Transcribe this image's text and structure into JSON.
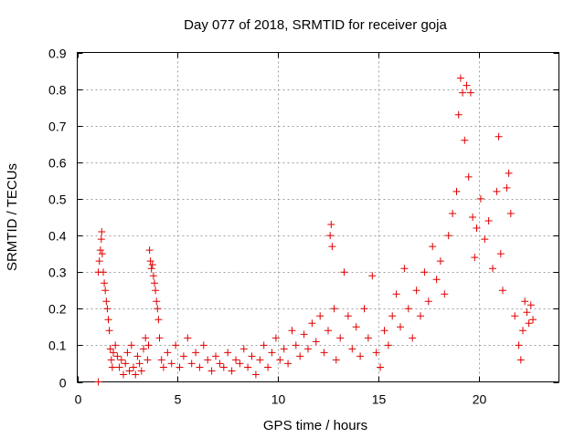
{
  "chart_data": {
    "type": "scatter",
    "title": "Day 077 of 2018, SRMTID for receiver goja",
    "xlabel": "GPS time / hours",
    "ylabel": "SRMTID / TECUs",
    "xlim": [
      0,
      24
    ],
    "ylim": [
      0,
      0.9
    ],
    "grid": true,
    "marker": "+",
    "color": "#e00000",
    "x_ticks": [
      0,
      5,
      10,
      15,
      20
    ],
    "x_tick_labels": [
      "0",
      "5",
      "10",
      "15",
      "20"
    ],
    "y_ticks": [
      0,
      0.1,
      0.2,
      0.3,
      0.4,
      0.5,
      0.6,
      0.7,
      0.8,
      0.9
    ],
    "y_tick_labels": [
      "0",
      "0.1",
      "0.2",
      "0.3",
      "0.4",
      "0.5",
      "0.6",
      "0.7",
      "0.8",
      "0.9"
    ],
    "series": [
      {
        "name": "SRMTID",
        "points": [
          [
            1.05,
            0.0
          ],
          [
            1.05,
            0.3
          ],
          [
            1.1,
            0.33
          ],
          [
            1.15,
            0.36
          ],
          [
            1.2,
            0.39
          ],
          [
            1.22,
            0.41
          ],
          [
            1.25,
            0.35
          ],
          [
            1.3,
            0.3
          ],
          [
            1.35,
            0.27
          ],
          [
            1.4,
            0.25
          ],
          [
            1.45,
            0.22
          ],
          [
            1.5,
            0.2
          ],
          [
            1.55,
            0.17
          ],
          [
            1.6,
            0.14
          ],
          [
            1.65,
            0.09
          ],
          [
            1.7,
            0.06
          ],
          [
            1.75,
            0.04
          ],
          [
            1.8,
            0.08
          ],
          [
            1.9,
            0.1
          ],
          [
            2.0,
            0.07
          ],
          [
            2.1,
            0.04
          ],
          [
            2.2,
            0.06
          ],
          [
            2.3,
            0.02
          ],
          [
            2.4,
            0.05
          ],
          [
            2.5,
            0.08
          ],
          [
            2.6,
            0.03
          ],
          [
            2.7,
            0.1
          ],
          [
            2.8,
            0.04
          ],
          [
            2.9,
            0.02
          ],
          [
            3.0,
            0.07
          ],
          [
            3.1,
            0.05
          ],
          [
            3.2,
            0.03
          ],
          [
            3.3,
            0.09
          ],
          [
            3.4,
            0.12
          ],
          [
            3.5,
            0.06
          ],
          [
            3.55,
            0.1
          ],
          [
            3.6,
            0.36
          ],
          [
            3.65,
            0.33
          ],
          [
            3.7,
            0.31
          ],
          [
            3.75,
            0.32
          ],
          [
            3.8,
            0.29
          ],
          [
            3.85,
            0.27
          ],
          [
            3.9,
            0.25
          ],
          [
            3.95,
            0.22
          ],
          [
            4.0,
            0.2
          ],
          [
            4.05,
            0.17
          ],
          [
            4.1,
            0.12
          ],
          [
            4.2,
            0.06
          ],
          [
            4.3,
            0.04
          ],
          [
            4.5,
            0.08
          ],
          [
            4.7,
            0.05
          ],
          [
            4.9,
            0.1
          ],
          [
            5.1,
            0.04
          ],
          [
            5.3,
            0.07
          ],
          [
            5.5,
            0.12
          ],
          [
            5.7,
            0.05
          ],
          [
            5.9,
            0.08
          ],
          [
            6.1,
            0.04
          ],
          [
            6.3,
            0.1
          ],
          [
            6.5,
            0.06
          ],
          [
            6.7,
            0.03
          ],
          [
            6.9,
            0.07
          ],
          [
            7.1,
            0.05
          ],
          [
            7.3,
            0.04
          ],
          [
            7.5,
            0.08
          ],
          [
            7.7,
            0.03
          ],
          [
            7.9,
            0.06
          ],
          [
            8.1,
            0.05
          ],
          [
            8.3,
            0.09
          ],
          [
            8.5,
            0.04
          ],
          [
            8.7,
            0.07
          ],
          [
            8.9,
            0.02
          ],
          [
            9.1,
            0.06
          ],
          [
            9.3,
            0.1
          ],
          [
            9.5,
            0.04
          ],
          [
            9.7,
            0.08
          ],
          [
            9.9,
            0.12
          ],
          [
            10.1,
            0.06
          ],
          [
            10.3,
            0.09
          ],
          [
            10.5,
            0.05
          ],
          [
            10.7,
            0.14
          ],
          [
            10.9,
            0.1
          ],
          [
            11.1,
            0.07
          ],
          [
            11.3,
            0.13
          ],
          [
            11.5,
            0.09
          ],
          [
            11.7,
            0.16
          ],
          [
            11.9,
            0.11
          ],
          [
            12.1,
            0.18
          ],
          [
            12.3,
            0.08
          ],
          [
            12.5,
            0.14
          ],
          [
            12.6,
            0.4
          ],
          [
            12.65,
            0.43
          ],
          [
            12.7,
            0.37
          ],
          [
            12.8,
            0.2
          ],
          [
            12.9,
            0.06
          ],
          [
            13.1,
            0.12
          ],
          [
            13.3,
            0.3
          ],
          [
            13.5,
            0.18
          ],
          [
            13.7,
            0.09
          ],
          [
            13.9,
            0.15
          ],
          [
            14.1,
            0.07
          ],
          [
            14.3,
            0.2
          ],
          [
            14.5,
            0.12
          ],
          [
            14.7,
            0.29
          ],
          [
            14.9,
            0.08
          ],
          [
            15.1,
            0.04
          ],
          [
            15.3,
            0.14
          ],
          [
            15.5,
            0.1
          ],
          [
            15.7,
            0.18
          ],
          [
            15.9,
            0.24
          ],
          [
            16.1,
            0.15
          ],
          [
            16.3,
            0.31
          ],
          [
            16.5,
            0.2
          ],
          [
            16.7,
            0.12
          ],
          [
            16.9,
            0.25
          ],
          [
            17.1,
            0.18
          ],
          [
            17.3,
            0.3
          ],
          [
            17.5,
            0.22
          ],
          [
            17.7,
            0.37
          ],
          [
            17.9,
            0.28
          ],
          [
            18.1,
            0.33
          ],
          [
            18.3,
            0.24
          ],
          [
            18.5,
            0.4
          ],
          [
            18.7,
            0.46
          ],
          [
            18.9,
            0.52
          ],
          [
            19.0,
            0.73
          ],
          [
            19.1,
            0.83
          ],
          [
            19.2,
            0.79
          ],
          [
            19.3,
            0.66
          ],
          [
            19.4,
            0.81
          ],
          [
            19.5,
            0.56
          ],
          [
            19.6,
            0.79
          ],
          [
            19.7,
            0.45
          ],
          [
            19.8,
            0.34
          ],
          [
            19.9,
            0.42
          ],
          [
            20.1,
            0.5
          ],
          [
            20.3,
            0.39
          ],
          [
            20.5,
            0.44
          ],
          [
            20.7,
            0.31
          ],
          [
            20.9,
            0.52
          ],
          [
            21.0,
            0.67
          ],
          [
            21.1,
            0.35
          ],
          [
            21.2,
            0.25
          ],
          [
            21.4,
            0.53
          ],
          [
            21.5,
            0.57
          ],
          [
            21.6,
            0.46
          ],
          [
            21.8,
            0.18
          ],
          [
            22.0,
            0.1
          ],
          [
            22.1,
            0.06
          ],
          [
            22.2,
            0.14
          ],
          [
            22.3,
            0.22
          ],
          [
            22.4,
            0.19
          ],
          [
            22.5,
            0.16
          ],
          [
            22.6,
            0.21
          ],
          [
            22.7,
            0.17
          ]
        ]
      }
    ]
  }
}
